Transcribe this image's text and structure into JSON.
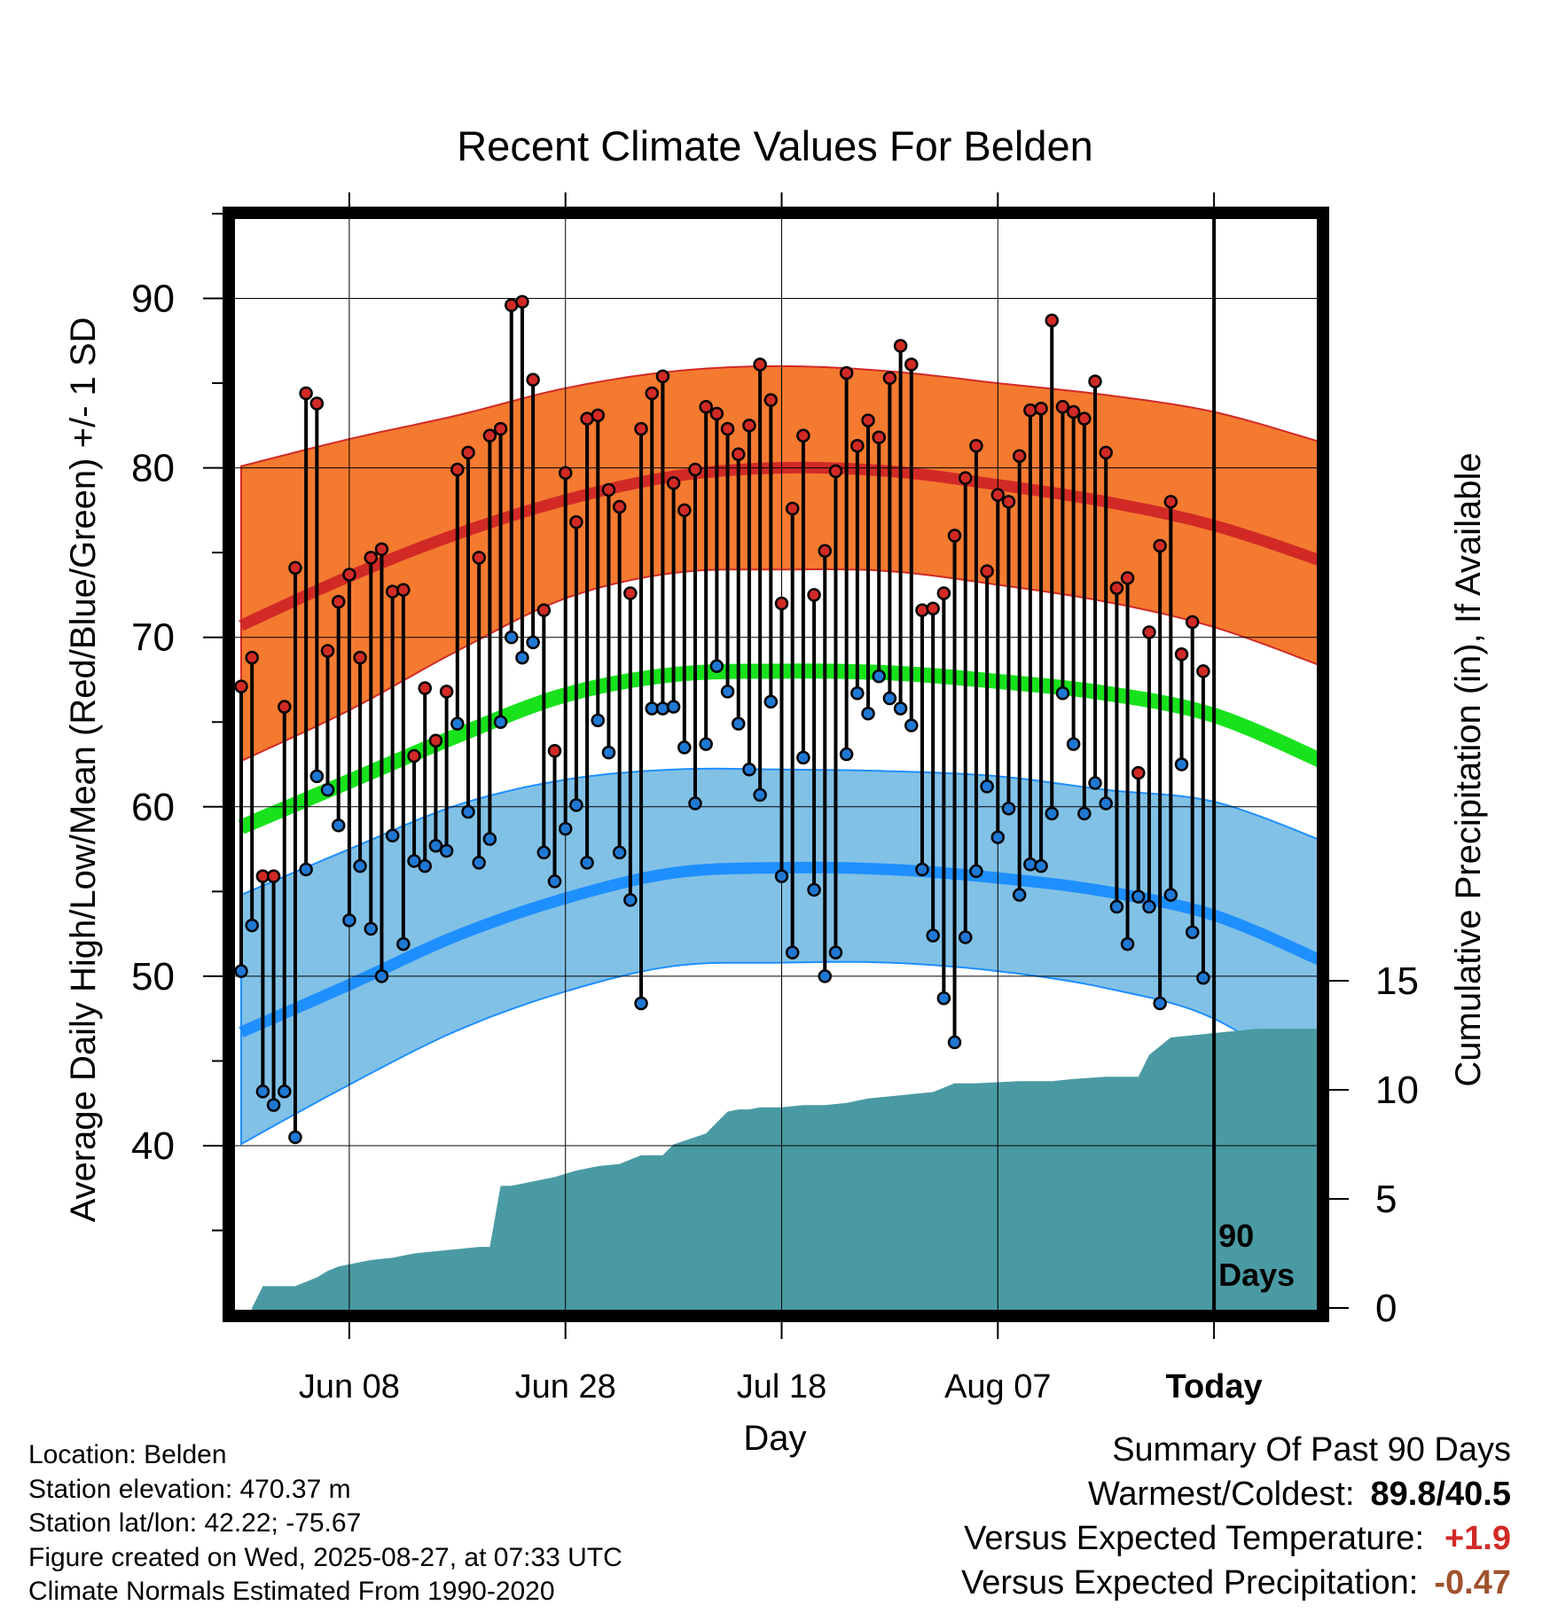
{
  "chart_data": {
    "type": "line",
    "title": "Recent Climate Values For Belden",
    "xlabel": "Day",
    "ylabel_left": "Average Daily High/Low/Mean (Red/Blue/Green) +/- 1 SD",
    "ylabel_right": "Cumulative Precipitation (in), If Available",
    "left_ylim": [
      30,
      95
    ],
    "left_ticks": [
      "40",
      "50",
      "60",
      "70",
      "80",
      "90"
    ],
    "right_ylim": [
      0,
      38
    ],
    "right_ticks": [
      "0",
      "5",
      "10",
      "15"
    ],
    "x_tick_labels": [
      "Jun 08",
      "Jun 28",
      "Jul 18",
      "Aug 07",
      "Today"
    ],
    "today_marker_label": "90\nDays",
    "grid": true,
    "normals": {
      "day": [
        0,
        10,
        20,
        30,
        40,
        50,
        60,
        70,
        80,
        90,
        100
      ],
      "high_mean": [
        70.7,
        73.6,
        76.1,
        78.1,
        79.5,
        80.0,
        79.8,
        79.0,
        78.0,
        76.6,
        74.5
      ],
      "high_plus_sd": [
        80.1,
        81.7,
        83.1,
        84.7,
        85.7,
        86.0,
        85.7,
        85.0,
        84.3,
        83.3,
        81.5
      ],
      "high_minus_sd": [
        62.7,
        65.7,
        69.2,
        72.3,
        73.8,
        74.0,
        73.9,
        73.1,
        72.1,
        70.6,
        68.3
      ],
      "avg_mean": [
        58.8,
        61.5,
        64.2,
        66.6,
        67.8,
        68.0,
        67.9,
        67.4,
        66.7,
        65.4,
        62.7
      ],
      "low_mean": [
        46.7,
        49.5,
        52.4,
        54.6,
        56.1,
        56.4,
        56.3,
        55.8,
        55.0,
        53.6,
        50.9
      ],
      "low_plus_sd": [
        54.8,
        57.5,
        60.1,
        61.6,
        62.2,
        62.2,
        62.1,
        61.8,
        61.0,
        60.3,
        58.0
      ],
      "low_minus_sd": [
        40.1,
        43.6,
        46.8,
        49.1,
        50.6,
        50.8,
        50.8,
        50.3,
        49.3,
        47.5,
        43.4
      ]
    },
    "series": [
      {
        "name": "Daily High",
        "values": [
          67.1,
          68.8,
          55.9,
          55.9,
          65.9,
          74.1,
          84.4,
          83.8,
          69.2,
          72.1,
          73.7,
          68.8,
          74.7,
          75.2,
          72.7,
          72.8,
          63.0,
          67.0,
          63.9,
          66.8,
          79.9,
          80.9,
          74.7,
          81.9,
          82.3,
          89.6,
          89.8,
          85.2,
          71.6,
          63.3,
          79.7,
          76.8,
          82.9,
          83.1,
          78.7,
          77.7,
          72.6,
          82.3,
          84.4,
          85.4,
          79.1,
          77.5,
          79.9,
          83.6,
          83.2,
          82.3,
          80.8,
          82.5,
          86.1,
          84.0,
          72.0,
          77.6,
          81.9,
          72.5,
          75.1,
          79.8,
          85.6,
          81.3,
          82.8,
          81.8,
          85.3,
          87.2,
          86.1,
          71.6,
          71.7,
          72.6,
          76.0,
          79.4,
          81.3,
          73.9,
          78.4,
          78.0,
          80.7,
          83.4,
          83.5,
          88.7,
          83.6,
          83.3,
          82.9,
          85.1,
          80.9,
          72.9,
          73.5,
          62.0,
          70.3,
          75.4,
          78.0,
          69.0,
          70.9,
          68.0
        ]
      },
      {
        "name": "Daily Low",
        "values": [
          50.3,
          53.0,
          43.2,
          42.4,
          43.2,
          40.5,
          56.3,
          61.8,
          61.0,
          58.9,
          53.3,
          56.5,
          52.8,
          50.0,
          58.3,
          51.9,
          56.8,
          56.5,
          57.7,
          57.4,
          64.9,
          59.7,
          56.7,
          58.1,
          65.0,
          70.0,
          68.8,
          69.7,
          57.3,
          55.6,
          58.7,
          60.1,
          56.7,
          65.1,
          63.2,
          57.3,
          54.5,
          48.4,
          65.8,
          65.8,
          65.9,
          63.5,
          60.2,
          63.7,
          68.3,
          66.8,
          64.9,
          62.2,
          60.7,
          66.2,
          55.9,
          51.4,
          62.9,
          55.1,
          50.0,
          51.4,
          63.1,
          66.7,
          65.5,
          67.7,
          66.4,
          65.8,
          64.8,
          56.3,
          52.4,
          48.7,
          46.1,
          52.3,
          56.2,
          61.2,
          58.2,
          59.9,
          54.8,
          56.6,
          56.5,
          59.6,
          66.7,
          63.7,
          59.6,
          61.4,
          60.2,
          54.1,
          51.9,
          54.7,
          54.1,
          48.4,
          54.8,
          62.5,
          52.6,
          49.9
        ]
      },
      {
        "name": "Cumulative Precipitation",
        "day": [
          1,
          2,
          5,
          6,
          7,
          8,
          9,
          10,
          12,
          14,
          16,
          18,
          20,
          22,
          23,
          24,
          25,
          27,
          29,
          31,
          33,
          35,
          37,
          39,
          40,
          43,
          45,
          46,
          47,
          48,
          50,
          52,
          54,
          56,
          58,
          60,
          62,
          64,
          66,
          68,
          72,
          75,
          77,
          80,
          83,
          84,
          86,
          88,
          90,
          94,
          100
        ],
        "values": [
          0.0,
          1.0,
          1.0,
          1.2,
          1.4,
          1.7,
          1.9,
          2.0,
          2.2,
          2.3,
          2.5,
          2.6,
          2.7,
          2.8,
          2.8,
          5.6,
          5.6,
          5.8,
          6.0,
          6.3,
          6.5,
          6.6,
          7.0,
          7.0,
          7.5,
          8.0,
          9.0,
          9.1,
          9.1,
          9.2,
          9.2,
          9.3,
          9.3,
          9.4,
          9.6,
          9.7,
          9.8,
          9.9,
          10.3,
          10.3,
          10.4,
          10.4,
          10.5,
          10.6,
          10.6,
          11.6,
          12.4,
          12.5,
          12.6,
          12.8,
          12.8
        ]
      }
    ]
  },
  "footer": {
    "location": "Location: Belden",
    "elevation": "Station elevation: 470.37 m",
    "latlon": "Station lat/lon: 42.22; -75.67",
    "created": "Figure created on Wed, 2025-08-27, at 07:33 UTC",
    "normals": "Climate Normals Estimated From 1990-2020"
  },
  "summary": {
    "title": "Summary Of Past 90 Days",
    "warm_cold_label": "Warmest/Coldest:",
    "warm_cold_value": "89.8/40.5",
    "temp_label": "Versus Expected Temperature:",
    "temp_value": "+1.9",
    "precip_label": "Versus Expected Precipitation:",
    "precip_value": "-0.47"
  },
  "colors": {
    "high_band": "#f47a30",
    "high_line": "#d12a26",
    "low_band": "#82c1e6",
    "low_line": "#1e8fff",
    "mean_line": "#18e21c",
    "precip_fill": "#4a9aa3",
    "high_dot": "#d12a26",
    "low_dot": "#1f78d4",
    "temp_positive": "#d12a26",
    "precip_negative": "#a0522d"
  }
}
